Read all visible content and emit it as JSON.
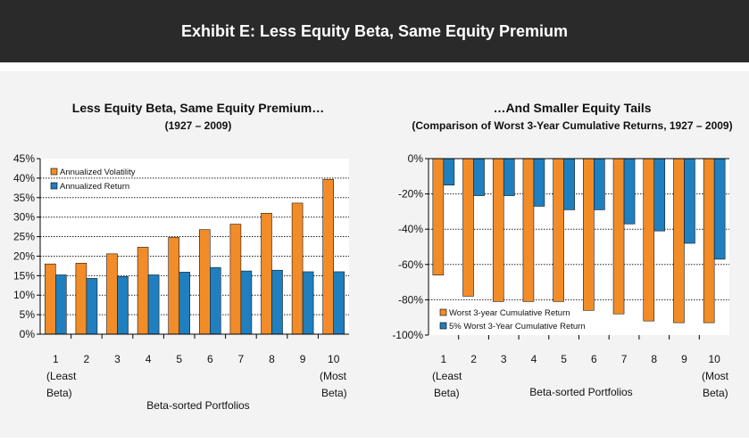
{
  "header": {
    "title": "Exhibit E: Less Equity Beta, Same Equity Premium"
  },
  "colors": {
    "orange": "#f28c28",
    "blue": "#1f7fbf",
    "banner": "#2a2a2a"
  },
  "chart_data": [
    {
      "type": "bar",
      "title": "Less Equity Beta, Same Equity Premium…",
      "subtitle": "(1927 – 2009)",
      "xlabel": "Beta-sorted Portfolios",
      "ylabel": "",
      "categories": [
        "1",
        "2",
        "3",
        "4",
        "5",
        "6",
        "7",
        "8",
        "9",
        "10"
      ],
      "category_notes": {
        "first": [
          "(Least",
          "Beta)"
        ],
        "last": [
          "(Most",
          "Beta)"
        ]
      },
      "series": [
        {
          "name": "Annualized Volatility",
          "values": [
            18.0,
            18.2,
            20.6,
            22.3,
            24.8,
            26.8,
            28.2,
            31.0,
            33.6,
            39.7
          ]
        },
        {
          "name": "Annualized Return",
          "values": [
            15.2,
            14.3,
            14.8,
            15.2,
            15.9,
            17.1,
            16.2,
            16.4,
            16.0,
            16.0
          ]
        }
      ],
      "yticks": [
        "45%",
        "40%",
        "35%",
        "30%",
        "25%",
        "20%",
        "15%",
        "10%",
        "5%",
        "0%"
      ],
      "ylim": [
        0,
        45
      ],
      "legend": "top-left"
    },
    {
      "type": "bar",
      "title": "…And Smaller Equity Tails",
      "subtitle": "(Comparison of Worst 3-Year Cumulative Returns, 1927 – 2009)",
      "xlabel": "Beta-sorted Portfolios",
      "ylabel": "",
      "categories": [
        "1",
        "2",
        "3",
        "4",
        "5",
        "6",
        "7",
        "8",
        "9",
        "10"
      ],
      "category_notes": {
        "first": [
          "(Least",
          "Beta)"
        ],
        "last": [
          "(Most",
          "Beta)"
        ]
      },
      "series": [
        {
          "name": "Worst 3-year Cumulative Return",
          "values": [
            -66,
            -78,
            -81,
            -81,
            -81,
            -86,
            -88,
            -92,
            -93,
            -93
          ]
        },
        {
          "name": "5% Worst 3-Year Cumulative Return",
          "values": [
            -15,
            -21,
            -21,
            -27,
            -29,
            -29,
            -37,
            -41,
            -48,
            -57
          ]
        }
      ],
      "yticks": [
        "0%",
        "-20%",
        "-40%",
        "-60%",
        "-80%",
        "-100%"
      ],
      "ylim": [
        -100,
        0
      ],
      "legend": "bottom-left"
    }
  ]
}
